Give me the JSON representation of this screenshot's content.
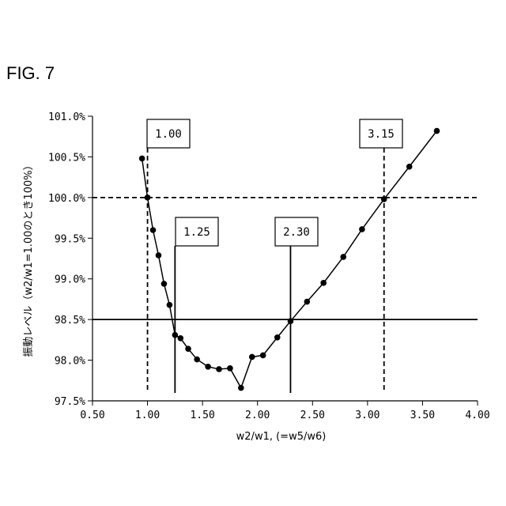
{
  "figure": {
    "label": "FIG. 7"
  },
  "chart_data": {
    "type": "line",
    "xlabel": "w2/w1, (=w5/w6)",
    "ylabel": "振動レベル（w2/w1=1.00のとき100%）",
    "xlim": [
      0.5,
      4.0
    ],
    "ylim": [
      97.5,
      101.0
    ],
    "x_ticks": [
      "0.50",
      "1.00",
      "1.50",
      "2.00",
      "2.50",
      "3.00",
      "3.50",
      "4.00"
    ],
    "y_ticks": [
      "97.5%",
      "98.0%",
      "98.5%",
      "99.0%",
      "99.5%",
      "100.0%",
      "100.5%",
      "101.0%"
    ],
    "grid": false,
    "series": [
      {
        "x": [
          0.95,
          1.0,
          1.05,
          1.1,
          1.15,
          1.2,
          1.25,
          1.3,
          1.37,
          1.45,
          1.55,
          1.65,
          1.75,
          1.85,
          1.95,
          2.05,
          2.18,
          2.3,
          2.45,
          2.6,
          2.78,
          2.95,
          3.15,
          3.38,
          3.63
        ],
        "y": [
          100.48,
          100.0,
          99.6,
          99.29,
          98.94,
          98.68,
          98.31,
          98.27,
          98.14,
          98.01,
          97.92,
          97.89,
          97.9,
          97.66,
          98.04,
          98.06,
          98.28,
          98.48,
          98.72,
          98.95,
          99.27,
          99.61,
          99.98,
          100.38,
          100.82
        ]
      }
    ],
    "reference_lines": [
      {
        "orientation": "horizontal",
        "value": 100.0,
        "style": "dashed"
      },
      {
        "orientation": "horizontal",
        "value": 98.5,
        "style": "solid"
      },
      {
        "orientation": "vertical",
        "value": 1.0,
        "style": "dashed",
        "label": "1.00"
      },
      {
        "orientation": "vertical",
        "value": 1.25,
        "style": "solid",
        "label": "1.25"
      },
      {
        "orientation": "vertical",
        "value": 2.3,
        "style": "solid",
        "label": "2.30"
      },
      {
        "orientation": "vertical",
        "value": 3.15,
        "style": "dashed",
        "label": "3.15"
      }
    ]
  }
}
